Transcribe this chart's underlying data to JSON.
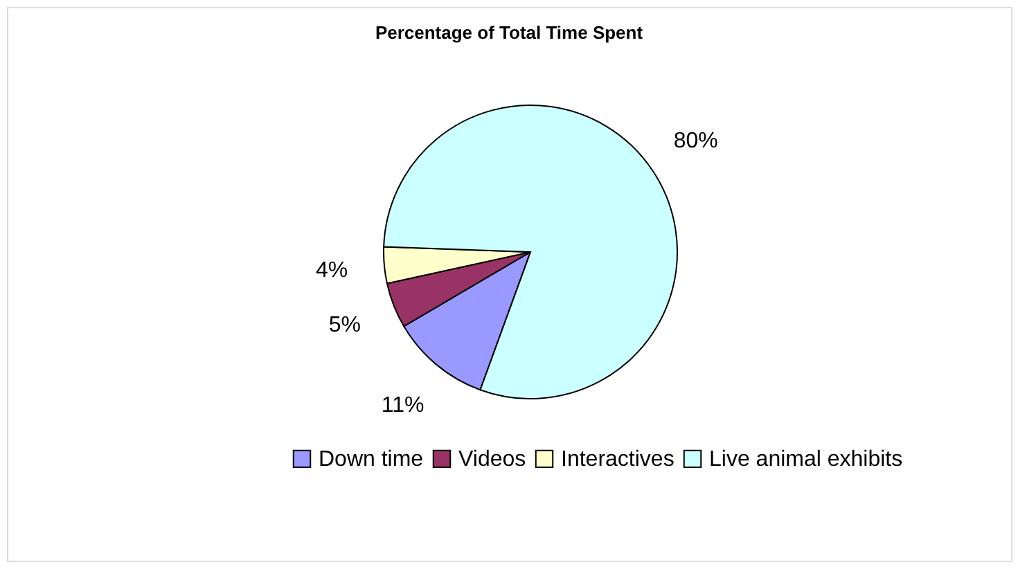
{
  "chart_data": {
    "type": "pie",
    "title": "Percentage of Total Time Spent",
    "categories": [
      "Down time",
      "Videos",
      "Interactives",
      "Live animal exhibits"
    ],
    "values": [
      11,
      5,
      4,
      80
    ],
    "colors": [
      "#9999ff",
      "#993366",
      "#ffffcc",
      "#ccffff"
    ],
    "value_labels": [
      "11%",
      "5%",
      "4%",
      "80%"
    ],
    "legend": "bottom"
  }
}
